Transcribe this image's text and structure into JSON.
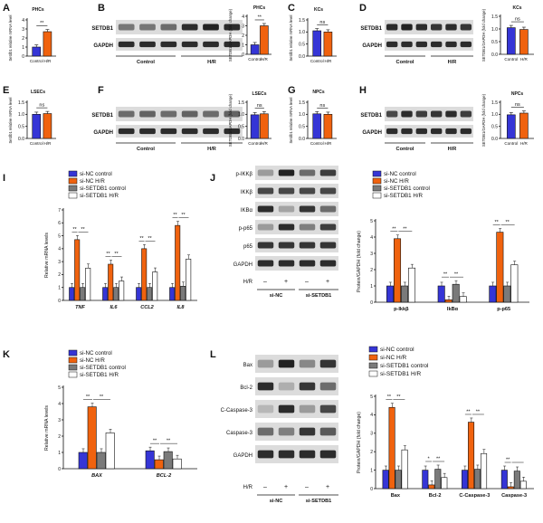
{
  "colors": {
    "blue": "#3535d6",
    "orange": "#f0620e",
    "gray": "#7a7a7a",
    "white": "#ffffff",
    "blot_bg": "#dcdcdc",
    "band": "#222222"
  },
  "labels": {
    "ctrl": "Control",
    "hr": "H/R",
    "sig2": "**",
    "sig1": "*",
    "ns": "ns",
    "minus": "–",
    "plus": "+",
    "hr_row": "H/R",
    "si_nc": "si-NC",
    "si_setdb1": "si-SETDB1",
    "gapdh": "GAPDH",
    "setdb1": "SETDB1"
  },
  "panels": {
    "A": {
      "letter": "A",
      "title": "PHCs",
      "ylabel": "Setdb1 relative mRNA level",
      "ylim": [
        0,
        4
      ],
      "ticks": [
        "0",
        "1",
        "2",
        "3",
        "4"
      ],
      "values": [
        1.0,
        2.7
      ],
      "sig": "**"
    },
    "B": {
      "letter": "B",
      "chart_title": "PHCs",
      "ylabel": "SETDB1/GAPDH (fold change)",
      "ylim": [
        0,
        4
      ],
      "ticks": [
        "0",
        "1",
        "2",
        "3",
        "4"
      ],
      "values": [
        1.0,
        3.0
      ],
      "sig": "**"
    },
    "C": {
      "letter": "C",
      "title": "KCs",
      "ylabel": "Setdb1 relative mRNA level",
      "ylim": [
        0,
        1.5
      ],
      "ticks": [
        "0.0",
        "0.5",
        "1.0",
        "1.5"
      ],
      "values": [
        1.05,
        1.0
      ],
      "sig": "ns"
    },
    "D": {
      "letter": "D",
      "chart_title": "KCs",
      "ylabel": "SETDB1/GAPDH (fold change)",
      "ylim": [
        0,
        1.5
      ],
      "ticks": [
        "0.0",
        "0.5",
        "1.0",
        "1.5"
      ],
      "values": [
        1.05,
        0.98
      ],
      "sig": "ns"
    },
    "E": {
      "letter": "E",
      "title": "LSECs",
      "ylabel": "Setdb1 relative mRNA level",
      "ylim": [
        0,
        1.5
      ],
      "ticks": [
        "0.0",
        "0.5",
        "1.0",
        "1.5"
      ],
      "values": [
        1.0,
        1.03
      ],
      "sig": "ns"
    },
    "F": {
      "letter": "F",
      "chart_title": "LSECs",
      "ylabel": "SETDB1/GAPDH (fold change)",
      "ylim": [
        0,
        1.5
      ],
      "ticks": [
        "0.0",
        "0.5",
        "1.0",
        "1.5"
      ],
      "values": [
        0.98,
        1.02
      ],
      "sig": "ns"
    },
    "G": {
      "letter": "G",
      "title": "NPCs",
      "ylabel": "Setdb1 relative mRNA level",
      "ylim": [
        0,
        1.5
      ],
      "ticks": [
        "0.0",
        "0.5",
        "1.0",
        "1.5"
      ],
      "values": [
        1.02,
        1.0
      ],
      "sig": "ns"
    },
    "H": {
      "letter": "H",
      "chart_title": "NPCs",
      "ylabel": "SETDB1/GAPDH (fold change)",
      "ylim": [
        0,
        1.5
      ],
      "ticks": [
        "0.0",
        "0.5",
        "1.0",
        "1.5"
      ],
      "values": [
        0.98,
        1.05
      ],
      "sig": "ns"
    },
    "I": {
      "letter": "I",
      "ylabel": "Relative mRNA levels",
      "legend": [
        "si-NC control",
        "si-NC H/R",
        "si-SETDB1 control",
        "si-SETDB1 H/R"
      ],
      "ylim": [
        0,
        7
      ],
      "ticks": [
        "0",
        "1",
        "2",
        "3",
        "4",
        "5",
        "6",
        "7"
      ],
      "categories": [
        "TNF",
        "IL6",
        "CCL2",
        "IL8"
      ],
      "series": [
        [
          1,
          1,
          1,
          1
        ],
        [
          4.7,
          2.8,
          4.0,
          5.8
        ],
        [
          1,
          1,
          1,
          1.1
        ],
        [
          2.5,
          1.5,
          2.2,
          3.2
        ]
      ],
      "sig": "**"
    },
    "J": {
      "letter": "J",
      "rows": [
        "p-IKKβ",
        "IKKβ",
        "IKBα",
        "p-p65",
        "p65",
        "GAPDH"
      ],
      "ylabel": "Protein/GAPDH (fold change)",
      "legend": [
        "si-NC control",
        "si-NC H/R",
        "si-SETDB1 control",
        "si-SETDB1 H/R"
      ],
      "ylim": [
        0,
        5
      ],
      "ticks": [
        "0",
        "1",
        "2",
        "3",
        "4",
        "5"
      ],
      "categories": [
        "p-Ikkβ",
        "IkBα",
        "p-p65"
      ],
      "series": [
        [
          1,
          1,
          1
        ],
        [
          3.9,
          0.15,
          4.3
        ],
        [
          1,
          1.1,
          1
        ],
        [
          2.1,
          0.35,
          2.3
        ]
      ],
      "sig": "**"
    },
    "K": {
      "letter": "K",
      "ylabel": "Relative mRNA levels",
      "legend": [
        "si-NC control",
        "si-NC H/R",
        "si-SETDB1 control",
        "si-SETDB1 H/R"
      ],
      "ylim": [
        0,
        5
      ],
      "ticks": [
        "0",
        "1",
        "2",
        "3",
        "4",
        "5"
      ],
      "categories": [
        "BAX",
        "BCL-2"
      ],
      "series": [
        [
          1,
          1.1
        ],
        [
          3.8,
          0.55
        ],
        [
          1,
          1.05
        ],
        [
          2.2,
          0.6
        ]
      ],
      "sig": "**"
    },
    "L": {
      "letter": "L",
      "rows": [
        "Bax",
        "Bcl-2",
        "C-Caspase-3",
        "Caspase-3",
        "GAPDH"
      ],
      "ylabel": "Protein/GAPDH (fold change)",
      "legend": [
        "si-NC control",
        "si-NC H/R",
        "si-SETDB1 control",
        "si-SETDB1 H/R"
      ],
      "ylim": [
        0,
        5
      ],
      "ticks": [
        "0",
        "1",
        "2",
        "3",
        "4",
        "5"
      ],
      "categories": [
        "Bax",
        "Bcl-2",
        "C-Caspase-3",
        "Caspase-3"
      ],
      "series": [
        [
          1,
          1,
          1,
          1
        ],
        [
          4.4,
          0.2,
          3.6,
          0.1
        ],
        [
          1,
          1.05,
          1.05,
          0.95
        ],
        [
          2.1,
          0.6,
          1.9,
          0.4
        ]
      ],
      "sig": [
        "**",
        "**",
        "*",
        "**",
        "**",
        "**",
        "**"
      ]
    }
  },
  "chart_data": [
    {
      "type": "bar",
      "panel": "A",
      "title": "PHCs",
      "categories": [
        "Control",
        "H/R"
      ],
      "values": [
        1.0,
        2.7
      ],
      "ylabel": "Setdb1 relative mRNA level",
      "ylim": [
        0,
        4
      ]
    },
    {
      "type": "bar",
      "panel": "B",
      "title": "PHCs",
      "categories": [
        "Control",
        "H/R"
      ],
      "values": [
        1.0,
        3.0
      ],
      "ylabel": "SETDB1/GAPDH (fold change)",
      "ylim": [
        0,
        4
      ]
    },
    {
      "type": "bar",
      "panel": "C",
      "title": "KCs",
      "categories": [
        "Control",
        "H/R"
      ],
      "values": [
        1.05,
        1.0
      ],
      "ylabel": "Setdb1 relative mRNA level",
      "ylim": [
        0,
        1.5
      ]
    },
    {
      "type": "bar",
      "panel": "D",
      "title": "KCs",
      "categories": [
        "Control",
        "H/R"
      ],
      "values": [
        1.05,
        0.98
      ],
      "ylabel": "SETDB1/GAPDH (fold change)",
      "ylim": [
        0,
        1.5
      ]
    },
    {
      "type": "bar",
      "panel": "E",
      "title": "LSECs",
      "categories": [
        "Control",
        "H/R"
      ],
      "values": [
        1.0,
        1.03
      ],
      "ylabel": "Setdb1 relative mRNA level",
      "ylim": [
        0,
        1.5
      ]
    },
    {
      "type": "bar",
      "panel": "F",
      "title": "LSECs",
      "categories": [
        "Control",
        "H/R"
      ],
      "values": [
        0.98,
        1.02
      ],
      "ylabel": "SETDB1/GAPDH (fold change)",
      "ylim": [
        0,
        1.5
      ]
    },
    {
      "type": "bar",
      "panel": "G",
      "title": "NPCs",
      "categories": [
        "Control",
        "H/R"
      ],
      "values": [
        1.02,
        1.0
      ],
      "ylabel": "Setdb1 relative mRNA level",
      "ylim": [
        0,
        1.5
      ]
    },
    {
      "type": "bar",
      "panel": "H",
      "title": "NPCs",
      "categories": [
        "Control",
        "H/R"
      ],
      "values": [
        0.98,
        1.05
      ],
      "ylabel": "SETDB1/GAPDH (fold change)",
      "ylim": [
        0,
        1.5
      ]
    },
    {
      "type": "bar",
      "panel": "I",
      "categories": [
        "TNF",
        "IL6",
        "CCL2",
        "IL8"
      ],
      "series": [
        {
          "name": "si-NC control",
          "values": [
            1,
            1,
            1,
            1
          ]
        },
        {
          "name": "si-NC H/R",
          "values": [
            4.7,
            2.8,
            4.0,
            5.8
          ]
        },
        {
          "name": "si-SETDB1 control",
          "values": [
            1,
            1,
            1,
            1.1
          ]
        },
        {
          "name": "si-SETDB1 H/R",
          "values": [
            2.5,
            1.5,
            2.2,
            3.2
          ]
        }
      ],
      "ylabel": "Relative mRNA levels",
      "ylim": [
        0,
        7
      ]
    },
    {
      "type": "bar",
      "panel": "J",
      "categories": [
        "p-Ikkβ",
        "IkBα",
        "p-p65"
      ],
      "series": [
        {
          "name": "si-NC control",
          "values": [
            1,
            1,
            1
          ]
        },
        {
          "name": "si-NC H/R",
          "values": [
            3.9,
            0.15,
            4.3
          ]
        },
        {
          "name": "si-SETDB1 control",
          "values": [
            1,
            1.1,
            1
          ]
        },
        {
          "name": "si-SETDB1 H/R",
          "values": [
            2.1,
            0.35,
            2.3
          ]
        }
      ],
      "ylabel": "Protein/GAPDH (fold change)",
      "ylim": [
        0,
        5
      ]
    },
    {
      "type": "bar",
      "panel": "K",
      "categories": [
        "BAX",
        "BCL-2"
      ],
      "series": [
        {
          "name": "si-NC control",
          "values": [
            1,
            1.1
          ]
        },
        {
          "name": "si-NC H/R",
          "values": [
            3.8,
            0.55
          ]
        },
        {
          "name": "si-SETDB1 control",
          "values": [
            1,
            1.05
          ]
        },
        {
          "name": "si-SETDB1 H/R",
          "values": [
            2.2,
            0.6
          ]
        }
      ],
      "ylabel": "Relative mRNA levels",
      "ylim": [
        0,
        5
      ]
    },
    {
      "type": "bar",
      "panel": "L",
      "categories": [
        "Bax",
        "Bcl-2",
        "C-Caspase-3",
        "Caspase-3"
      ],
      "series": [
        {
          "name": "si-NC control",
          "values": [
            1,
            1,
            1,
            1
          ]
        },
        {
          "name": "si-NC H/R",
          "values": [
            4.4,
            0.2,
            3.6,
            0.1
          ]
        },
        {
          "name": "si-SETDB1 control",
          "values": [
            1,
            1.05,
            1.05,
            0.95
          ]
        },
        {
          "name": "si-SETDB1 H/R",
          "values": [
            2.1,
            0.6,
            1.9,
            0.4
          ]
        }
      ],
      "ylabel": "Protein/GAPDH (fold change)",
      "ylim": [
        0,
        5
      ]
    }
  ]
}
